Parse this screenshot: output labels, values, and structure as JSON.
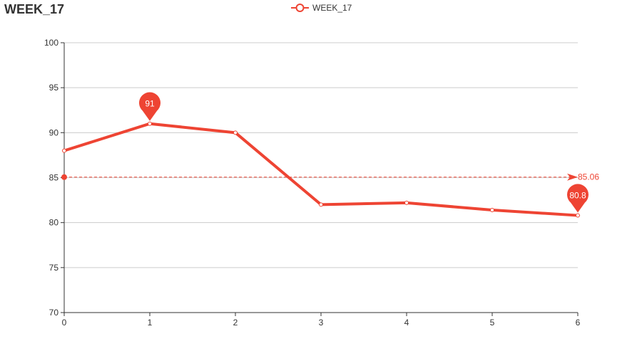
{
  "chart_data": {
    "type": "line",
    "title": "WEEK_17",
    "xlabel": "",
    "ylabel": "",
    "x": [
      0,
      1,
      2,
      3,
      4,
      5,
      6
    ],
    "x_ticks": [
      "0",
      "1",
      "2",
      "3",
      "4",
      "5",
      "6"
    ],
    "ylim": [
      70,
      100
    ],
    "y_ticks": [
      "70",
      "75",
      "80",
      "85",
      "90",
      "95",
      "100"
    ],
    "grid": true,
    "legend_position": "top-center",
    "series": [
      {
        "name": "WEEK_17",
        "values": [
          88,
          91,
          90,
          82,
          82.2,
          81.4,
          80.8
        ],
        "color": "#ee4433"
      }
    ],
    "mark_points": [
      {
        "label": "91",
        "x": 1,
        "y": 91
      },
      {
        "label": "80.8",
        "x": 6,
        "y": 80.8
      }
    ],
    "mark_line": {
      "label": "85.06",
      "y": 85.06
    }
  }
}
